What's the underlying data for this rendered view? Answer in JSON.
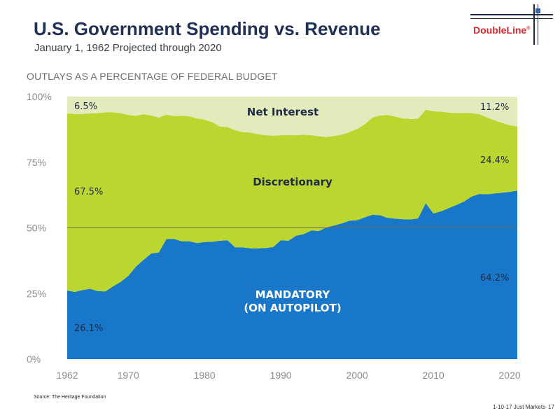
{
  "header": {
    "title": "U.S. Government Spending vs. Revenue",
    "subtitle": "January 1, 1962 Projected through 2020"
  },
  "logo": {
    "text": "DoubleLine",
    "mark": "®"
  },
  "chart_heading": "OUTLAYS AS A PERCENTAGE OF FEDERAL BUDGET",
  "footer": {
    "source": "Source: The Heritage Foundation",
    "note": "1-10-17 Just Markets",
    "page": "17"
  },
  "colors": {
    "mandatory": "#1877c9",
    "discretionary": "#bcd630",
    "net_interest": "#e3ebbc",
    "gridline": "#6b6b50"
  },
  "chart_data": {
    "type": "area",
    "stacked": true,
    "xlim": [
      1962,
      2021
    ],
    "ylim": [
      0,
      100
    ],
    "x_ticks": [
      1962,
      1970,
      1980,
      1990,
      2000,
      2010,
      2020
    ],
    "y_ticks": [
      {
        "value": 0,
        "label": "0%"
      },
      {
        "value": 25,
        "label": "25%"
      },
      {
        "value": 50,
        "label": "50%"
      },
      {
        "value": 75,
        "label": "75%"
      },
      {
        "value": 100,
        "label": "100%"
      }
    ],
    "reference_line": 50,
    "x": [
      1962,
      1963,
      1964,
      1965,
      1966,
      1967,
      1968,
      1969,
      1970,
      1971,
      1972,
      1973,
      1974,
      1975,
      1976,
      1977,
      1978,
      1979,
      1980,
      1981,
      1982,
      1983,
      1984,
      1985,
      1986,
      1987,
      1988,
      1989,
      1990,
      1991,
      1992,
      1993,
      1994,
      1995,
      1996,
      1997,
      1998,
      1999,
      2000,
      2001,
      2002,
      2003,
      2004,
      2005,
      2006,
      2007,
      2008,
      2009,
      2010,
      2011,
      2012,
      2013,
      2014,
      2015,
      2016,
      2017,
      2018,
      2019,
      2020,
      2021
    ],
    "series": [
      {
        "name": "MANDATORY",
        "values": [
          26.1,
          25.6,
          26.3,
          26.8,
          25.9,
          25.8,
          27.7,
          29.4,
          31.7,
          35.2,
          37.8,
          40.2,
          40.6,
          45.7,
          45.8,
          44.9,
          44.9,
          44.2,
          44.6,
          44.7,
          45.1,
          45.3,
          42.6,
          42.6,
          42.2,
          42.2,
          42.3,
          42.7,
          45.3,
          45.1,
          47.0,
          47.6,
          49.0,
          48.8,
          50.2,
          50.9,
          51.7,
          52.7,
          52.9,
          54.0,
          55.0,
          54.8,
          53.8,
          53.5,
          53.3,
          53.2,
          53.6,
          59.4,
          55.5,
          56.3,
          57.5,
          58.7,
          60.0,
          61.9,
          62.9,
          62.8,
          63.1,
          63.4,
          63.7,
          64.2
        ]
      },
      {
        "name": "Discretionary",
        "values": [
          67.5,
          67.8,
          67.1,
          66.8,
          67.8,
          68.2,
          66.3,
          64.3,
          61.3,
          57.5,
          55.5,
          52.6,
          51.4,
          47.4,
          46.8,
          47.8,
          47.6,
          47.5,
          46.6,
          45.6,
          43.5,
          43.1,
          44.6,
          43.9,
          44.1,
          43.5,
          43.0,
          42.4,
          40.0,
          40.3,
          38.3,
          37.9,
          36.3,
          36.1,
          34.4,
          34.1,
          33.8,
          33.8,
          34.8,
          35.4,
          37.0,
          38.0,
          39.2,
          38.9,
          38.4,
          38.3,
          38.0,
          35.6,
          38.9,
          38.0,
          36.4,
          35.0,
          33.8,
          31.8,
          30.4,
          29.3,
          27.9,
          26.6,
          25.4,
          24.4
        ]
      },
      {
        "name": "Net Interest",
        "values": [
          6.5,
          6.6,
          6.6,
          6.4,
          6.3,
          6.0,
          6.0,
          6.3,
          7.0,
          7.3,
          6.7,
          7.2,
          8.0,
          6.9,
          7.4,
          7.3,
          7.5,
          8.3,
          8.8,
          9.7,
          11.4,
          11.6,
          12.8,
          13.5,
          13.7,
          14.3,
          14.7,
          14.9,
          14.7,
          14.6,
          14.7,
          14.5,
          14.7,
          15.1,
          15.4,
          15.0,
          14.5,
          13.5,
          12.3,
          10.6,
          8.0,
          7.2,
          7.0,
          7.6,
          8.3,
          8.5,
          8.4,
          5.0,
          5.6,
          5.7,
          6.1,
          6.3,
          6.2,
          6.3,
          6.7,
          7.9,
          9.0,
          10.0,
          10.9,
          11.2
        ]
      }
    ],
    "region_labels": {
      "net_interest": "Net Interest",
      "discretionary": "Discretionary",
      "mandatory_line1": "MANDATORY",
      "mandatory_line2": "(ON AUTOPILOT)"
    },
    "value_labels": {
      "net_interest_start": "6.5%",
      "net_interest_end": "11.2%",
      "discretionary_start": "67.5%",
      "discretionary_end": "24.4%",
      "mandatory_start": "26.1%",
      "mandatory_end": "64.2%"
    }
  }
}
